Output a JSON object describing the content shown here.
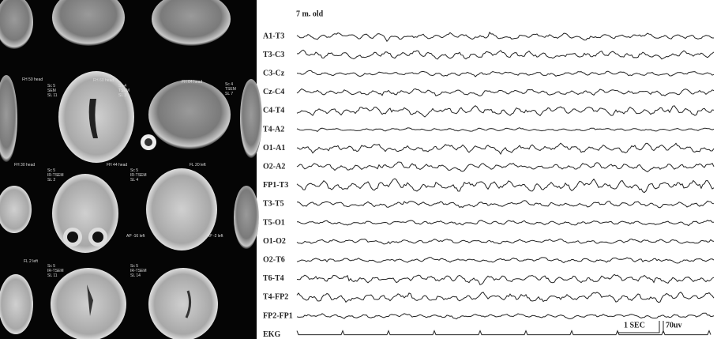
{
  "figure": {
    "age_label": "7 m. old",
    "channels": [
      "A1-T3",
      "T3-C3",
      "C3-Cz",
      "Cz-C4",
      "C4-T4",
      "T4-A2",
      "O1-A1",
      "O2-A2",
      "FP1-T3",
      "T3-T5",
      "T5-O1",
      "O1-O2",
      "O2-T6",
      "T6-T4",
      "T4-FP2",
      "FP2-FP1",
      "EKG"
    ],
    "scale_time": "1 SEC",
    "scale_amplitude": "70uv"
  },
  "mri": {
    "labels": [
      [
        "FH 50 head"
      ],
      [
        "Sc 5",
        "SEM",
        "SL 11"
      ],
      [
        "FH 60 head"
      ],
      [
        "Sc 4",
        "TSEM",
        "SL 3"
      ],
      [
        "FH 64 head"
      ],
      [
        "Sc 4",
        "TSEM",
        "SL 7"
      ],
      [
        "FH 30 head"
      ],
      [
        "Sc 5",
        "IR-TSEM",
        "SL 2"
      ],
      [
        "FH 44 head"
      ],
      [
        "Sc 5",
        "IR-TSEM",
        "SL 4"
      ],
      [
        "FL 20 left"
      ],
      [
        "AP -16 left"
      ],
      [
        "AP -2 left"
      ],
      [
        "FL 2 left"
      ],
      [
        "Sc 5",
        "IR-TSEM",
        "SL 11"
      ],
      [
        "Sc 5",
        "IR-TSEM",
        "SL 14"
      ]
    ]
  }
}
